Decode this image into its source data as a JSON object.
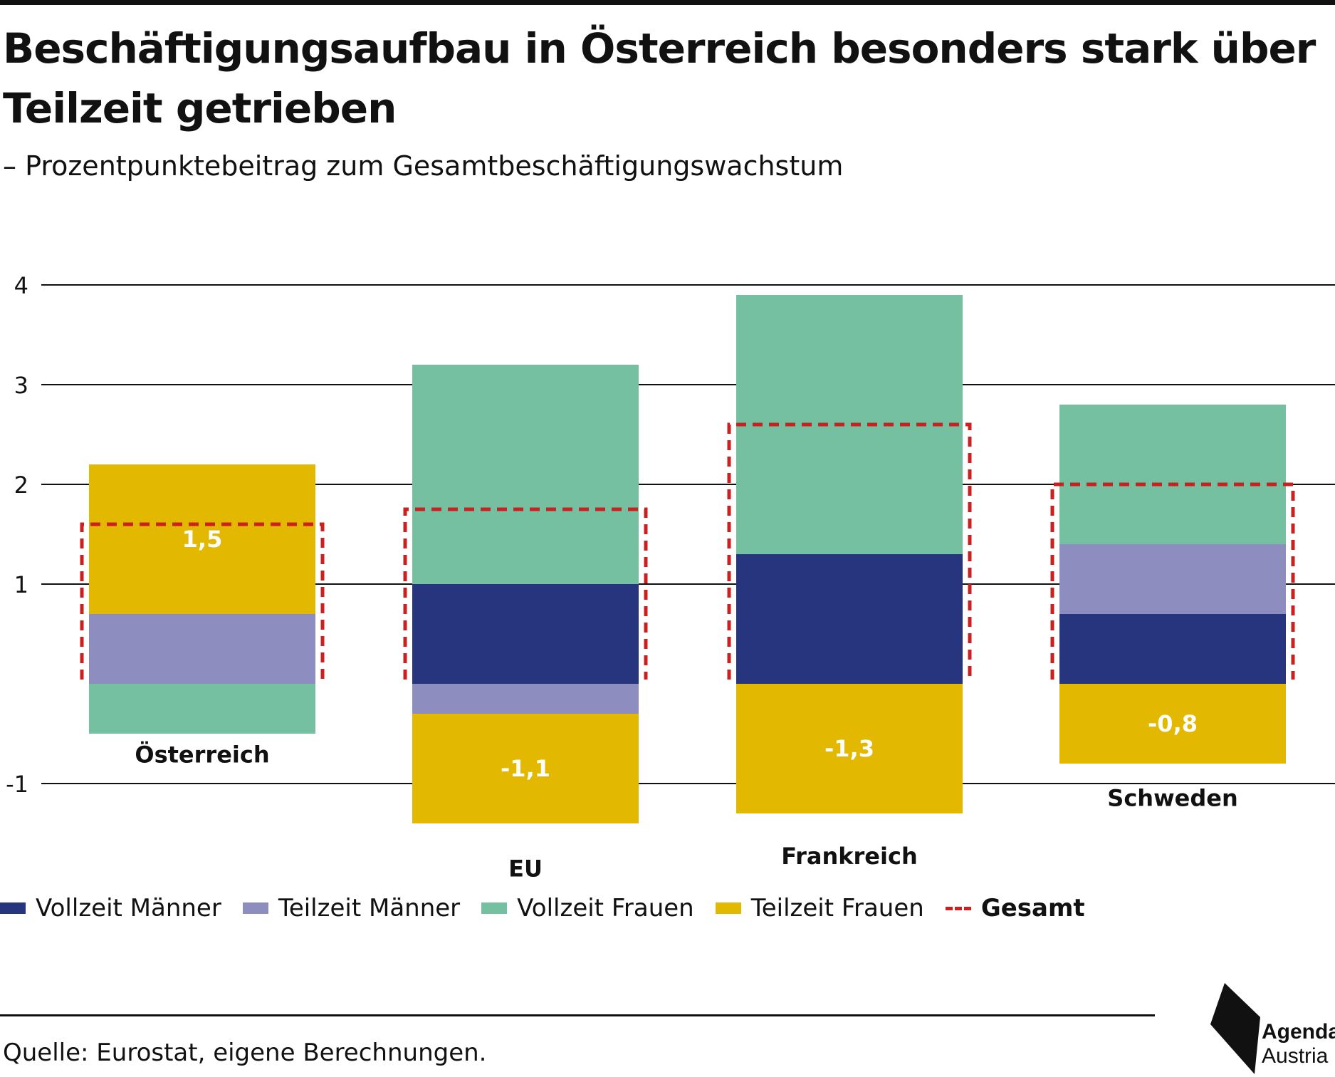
{
  "header": {
    "title": "Beschäftigungsaufbau in Österreich besonders stark über Teilzeit getrieben",
    "subtitle": "– Prozentpunktebeitrag zum Gesamtbeschäftigungswachstum"
  },
  "footer": {
    "source": "Quelle: Eurostat, eigene Berechnungen.",
    "logo_line1": "Agenda",
    "logo_line2": "Austria"
  },
  "colors": {
    "vollzeit_maenner": "#27357f",
    "teilzeit_maenner": "#8d8dbf",
    "vollzeit_frauen": "#74c0a1",
    "teilzeit_frauen": "#e2b800",
    "gesamt": "#cc1f1f",
    "gridline": "#111111"
  },
  "legend": [
    {
      "label": "Vollzeit Männer",
      "color": "#27357f",
      "style": "box"
    },
    {
      "label": "Teilzeit Männer",
      "color": "#8d8dbf",
      "style": "box"
    },
    {
      "label": "Vollzeit Frauen",
      "color": "#74c0a1",
      "style": "box"
    },
    {
      "label": "Teilzeit Frauen",
      "color": "#e2b800",
      "style": "box"
    },
    {
      "label": "Gesamt",
      "color": "#cc1f1f",
      "style": "dashed"
    }
  ],
  "chart_data": {
    "type": "bar",
    "stacked": true,
    "title": "Beschäftigungsaufbau in Österreich besonders stark über Teilzeit getrieben",
    "subtitle": "– Prozentpunktebeitrag zum Gesamtbeschäftigungswachstum",
    "xlabel": "",
    "ylabel": "",
    "categories": [
      "Österreich",
      "EU",
      "Frankreich",
      "Schweden"
    ],
    "series": [
      {
        "name": "Vollzeit Männer",
        "values": [
          0,
          1.0,
          1.3,
          0.7
        ]
      },
      {
        "name": "Teilzeit Männer",
        "values": [
          0.7,
          -0.3,
          0,
          0.7
        ]
      },
      {
        "name": "Vollzeit Frauen",
        "values": [
          -0.5,
          2.2,
          2.6,
          1.4
        ]
      },
      {
        "name": "Teilzeit Frauen",
        "values": [
          1.5,
          -1.1,
          -1.3,
          -0.8
        ]
      }
    ],
    "total": {
      "name": "Gesamt",
      "values": [
        1.6,
        1.75,
        2.6,
        2.0
      ]
    },
    "data_labels": [
      "1,5",
      "-1,1",
      "-1,3",
      "-0,8"
    ],
    "yticks": [
      -1,
      1,
      2,
      3,
      4
    ],
    "ytick_labels": [
      "-1",
      "1",
      "2",
      "3",
      "4"
    ],
    "ylim": [
      -1.4,
      4.0
    ],
    "grid": true,
    "legend_position": "bottom"
  }
}
